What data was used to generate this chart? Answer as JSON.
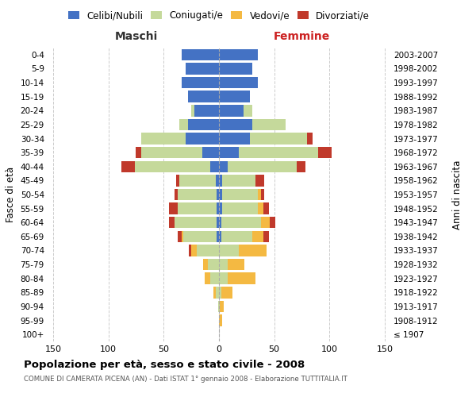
{
  "age_groups": [
    "100+",
    "95-99",
    "90-94",
    "85-89",
    "80-84",
    "75-79",
    "70-74",
    "65-69",
    "60-64",
    "55-59",
    "50-54",
    "45-49",
    "40-44",
    "35-39",
    "30-34",
    "25-29",
    "20-24",
    "15-19",
    "10-14",
    "5-9",
    "0-4"
  ],
  "birth_years": [
    "≤ 1907",
    "1908-1912",
    "1913-1917",
    "1918-1922",
    "1923-1927",
    "1928-1932",
    "1933-1937",
    "1938-1942",
    "1943-1947",
    "1948-1952",
    "1953-1957",
    "1958-1962",
    "1963-1967",
    "1968-1972",
    "1973-1977",
    "1978-1982",
    "1983-1987",
    "1988-1992",
    "1993-1997",
    "1998-2002",
    "2003-2007"
  ],
  "male_celibi": [
    0,
    0,
    0,
    0,
    0,
    0,
    0,
    2,
    2,
    2,
    2,
    3,
    8,
    15,
    30,
    28,
    22,
    28,
    34,
    30,
    34
  ],
  "male_coniugati": [
    0,
    0,
    1,
    3,
    8,
    10,
    20,
    30,
    38,
    35,
    35,
    33,
    68,
    55,
    40,
    8,
    3,
    0,
    0,
    0,
    0
  ],
  "male_vedovi": [
    0,
    0,
    0,
    2,
    5,
    4,
    5,
    2,
    0,
    0,
    0,
    0,
    0,
    0,
    0,
    0,
    0,
    0,
    0,
    0,
    0
  ],
  "male_divorziati": [
    0,
    0,
    0,
    0,
    0,
    0,
    2,
    3,
    5,
    8,
    3,
    3,
    12,
    5,
    0,
    0,
    0,
    0,
    0,
    0,
    0
  ],
  "female_nubili": [
    0,
    0,
    0,
    0,
    0,
    0,
    0,
    2,
    2,
    3,
    3,
    3,
    8,
    18,
    28,
    30,
    22,
    28,
    35,
    30,
    35
  ],
  "female_coniugate": [
    0,
    0,
    1,
    2,
    8,
    8,
    18,
    28,
    36,
    32,
    32,
    30,
    62,
    72,
    52,
    30,
    8,
    0,
    0,
    0,
    0
  ],
  "female_vedove": [
    0,
    3,
    3,
    10,
    25,
    15,
    25,
    10,
    8,
    5,
    3,
    0,
    0,
    0,
    0,
    0,
    0,
    0,
    0,
    0,
    0
  ],
  "female_divorziate": [
    0,
    0,
    0,
    0,
    0,
    0,
    0,
    5,
    5,
    5,
    3,
    8,
    8,
    12,
    5,
    0,
    0,
    0,
    0,
    0,
    0
  ],
  "color_celibi": "#4472C4",
  "color_coniugati": "#C5D99B",
  "color_vedovi": "#F4B942",
  "color_divorziati": "#C0392B",
  "title": "Popolazione per età, sesso e stato civile - 2008",
  "subtitle": "COMUNE DI CAMERATA PICENA (AN) - Dati ISTAT 1° gennaio 2008 - Elaborazione TUTTITALIA.IT",
  "label_maschi": "Maschi",
  "label_femmine": "Femmine",
  "label_fasce": "Fasce di età",
  "label_anni": "Anni di nascita",
  "legend_labels": [
    "Celibi/Nubili",
    "Coniugati/e",
    "Vedovi/e",
    "Divorziati/e"
  ],
  "xlim": 155
}
